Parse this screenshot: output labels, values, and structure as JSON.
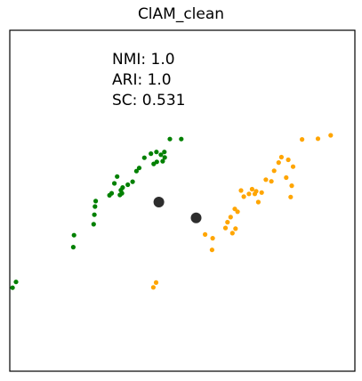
{
  "chart_data": {
    "type": "scatter",
    "title": "ClAM_clean",
    "xlabel": "",
    "ylabel": "",
    "xlim": [
      0,
      100
    ],
    "ylim": [
      0,
      100
    ],
    "grid": false,
    "axis_ticks": false,
    "annotations": [
      "NMI: 1.0",
      "ARI: 1.0",
      "SC: 0.531"
    ],
    "colors": {
      "cluster_0": "#008000",
      "cluster_1": "#FFA500",
      "centroid": "#222222",
      "frame": "#000000"
    },
    "series": [
      {
        "cluster": 0,
        "color": "#008000",
        "points": [
          [
            0.8,
            24.5
          ],
          [
            1.8,
            26.2
          ],
          [
            18.4,
            36.4
          ],
          [
            18.6,
            39.9
          ],
          [
            24.3,
            43.1
          ],
          [
            24.5,
            45.9
          ],
          [
            24.7,
            48.3
          ],
          [
            24.9,
            49.9
          ],
          [
            28.9,
            51.6
          ],
          [
            29.5,
            52.2
          ],
          [
            30.3,
            55.1
          ],
          [
            31.1,
            57.1
          ],
          [
            31.9,
            51.7
          ],
          [
            32.2,
            53.1
          ],
          [
            32.5,
            52.2
          ],
          [
            32.7,
            53.9
          ],
          [
            34.2,
            54.7
          ],
          [
            35.6,
            55.6
          ],
          [
            36.7,
            58.7
          ],
          [
            37.5,
            59.6
          ],
          [
            39.0,
            62.6
          ],
          [
            40.9,
            63.8
          ],
          [
            41.7,
            60.8
          ],
          [
            42.5,
            64.3
          ],
          [
            43.8,
            63.5
          ],
          [
            44.8,
            64.3
          ],
          [
            44.9,
            62.7
          ],
          [
            42.6,
            61.4
          ],
          [
            44.3,
            61.6
          ],
          [
            46.4,
            68.1
          ],
          [
            49.7,
            68.1
          ]
        ]
      },
      {
        "cluster": 1,
        "color": "#FFA500",
        "points": [
          [
            41.6,
            24.6
          ],
          [
            42.4,
            26.0
          ],
          [
            56.6,
            40.1
          ],
          [
            58.6,
            35.6
          ],
          [
            58.8,
            39.0
          ],
          [
            62.5,
            42.0
          ],
          [
            63.1,
            43.7
          ],
          [
            64.0,
            45.2
          ],
          [
            64.5,
            40.5
          ],
          [
            65.4,
            41.8
          ],
          [
            65.2,
            47.6
          ],
          [
            66.0,
            46.8
          ],
          [
            67.8,
            51.2
          ],
          [
            67.0,
            53.0
          ],
          [
            69.3,
            52.0
          ],
          [
            70.2,
            53.4
          ],
          [
            71.0,
            52.0
          ],
          [
            71.4,
            52.8
          ],
          [
            72.0,
            49.6
          ],
          [
            73.0,
            52.4
          ],
          [
            74.2,
            56.2
          ],
          [
            75.8,
            55.7
          ],
          [
            76.6,
            58.8
          ],
          [
            77.9,
            61.2
          ],
          [
            78.7,
            62.8
          ],
          [
            80.7,
            62.0
          ],
          [
            82.1,
            60.0
          ],
          [
            80.1,
            56.8
          ],
          [
            81.7,
            54.4
          ],
          [
            81.4,
            51.1
          ],
          [
            84.7,
            68.0
          ],
          [
            89.3,
            68.2
          ],
          [
            93.0,
            69.2
          ]
        ]
      }
    ],
    "centroids": [
      [
        43.2,
        49.6
      ],
      [
        54.0,
        45.0
      ]
    ]
  }
}
